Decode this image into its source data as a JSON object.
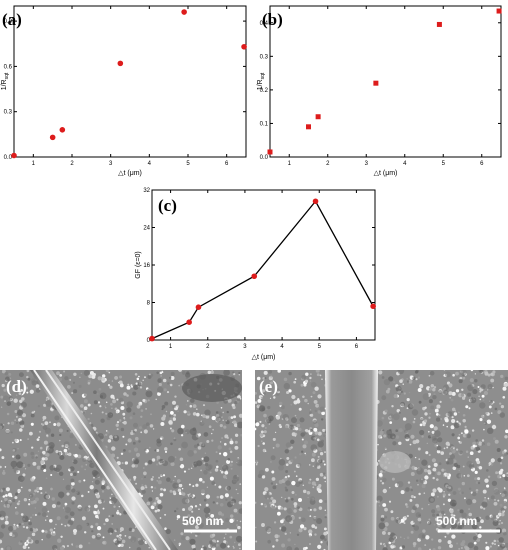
{
  "chart_data": [
    {
      "type": "scatter",
      "panel_label": "(a)",
      "xlabel": "△t (μm)",
      "ylabel": "1/R",
      "ylabel_sub": "sqt",
      "xlim": [
        0.5,
        6.5
      ],
      "ylim": [
        0,
        1.0
      ],
      "xticks": [
        1,
        2,
        3,
        4,
        5,
        6
      ],
      "yticks": [
        0.0,
        0.3,
        0.6,
        0.9
      ],
      "ytick_labels": [
        "0.0",
        "0.3",
        "0.6",
        "0.9"
      ],
      "marker": "circle",
      "color": "#dd1c1c",
      "x": [
        0.5,
        1.5,
        1.75,
        3.25,
        4.9,
        6.45
      ],
      "y": [
        0.01,
        0.13,
        0.18,
        0.62,
        0.96,
        0.73
      ]
    },
    {
      "type": "scatter",
      "panel_label": "(b)",
      "xlabel": "△t (μm)",
      "ylabel": "1/R",
      "ylabel_sub": "sqt",
      "xlim": [
        0.5,
        6.5
      ],
      "ylim": [
        0,
        0.45
      ],
      "xticks": [
        1,
        2,
        3,
        4,
        5,
        6
      ],
      "yticks": [
        0.0,
        0.1,
        0.2,
        0.3,
        0.4
      ],
      "ytick_labels": [
        "0.0",
        "0.1",
        "0.2",
        "0.3",
        "0.4"
      ],
      "marker": "square",
      "color": "#dd1c1c",
      "x": [
        0.5,
        1.5,
        1.75,
        3.25,
        4.9,
        6.45
      ],
      "y": [
        0.015,
        0.09,
        0.12,
        0.22,
        0.395,
        0.435
      ]
    },
    {
      "type": "line",
      "panel_label": "(c)",
      "xlabel": "△t (μm)",
      "ylabel": "GF (ε=0)",
      "xlim": [
        0.5,
        6.5
      ],
      "ylim": [
        0,
        32
      ],
      "xticks": [
        1,
        2,
        3,
        4,
        5,
        6
      ],
      "yticks": [
        0,
        8,
        16,
        24,
        32
      ],
      "ytick_labels": [
        "0",
        "8",
        "16",
        "24",
        "32"
      ],
      "marker": "circle",
      "color": "#dd1c1c",
      "line_color": "#000000",
      "x": [
        0.5,
        1.5,
        1.75,
        3.25,
        4.9,
        6.45
      ],
      "y": [
        0.3,
        3.8,
        7.0,
        13.6,
        29.6,
        7.2
      ]
    }
  ],
  "images": {
    "left": {
      "panel_label": "(d)",
      "scale_bar": "500  nm"
    },
    "right": {
      "panel_label": "(e)",
      "scale_bar": "500  nm"
    }
  }
}
